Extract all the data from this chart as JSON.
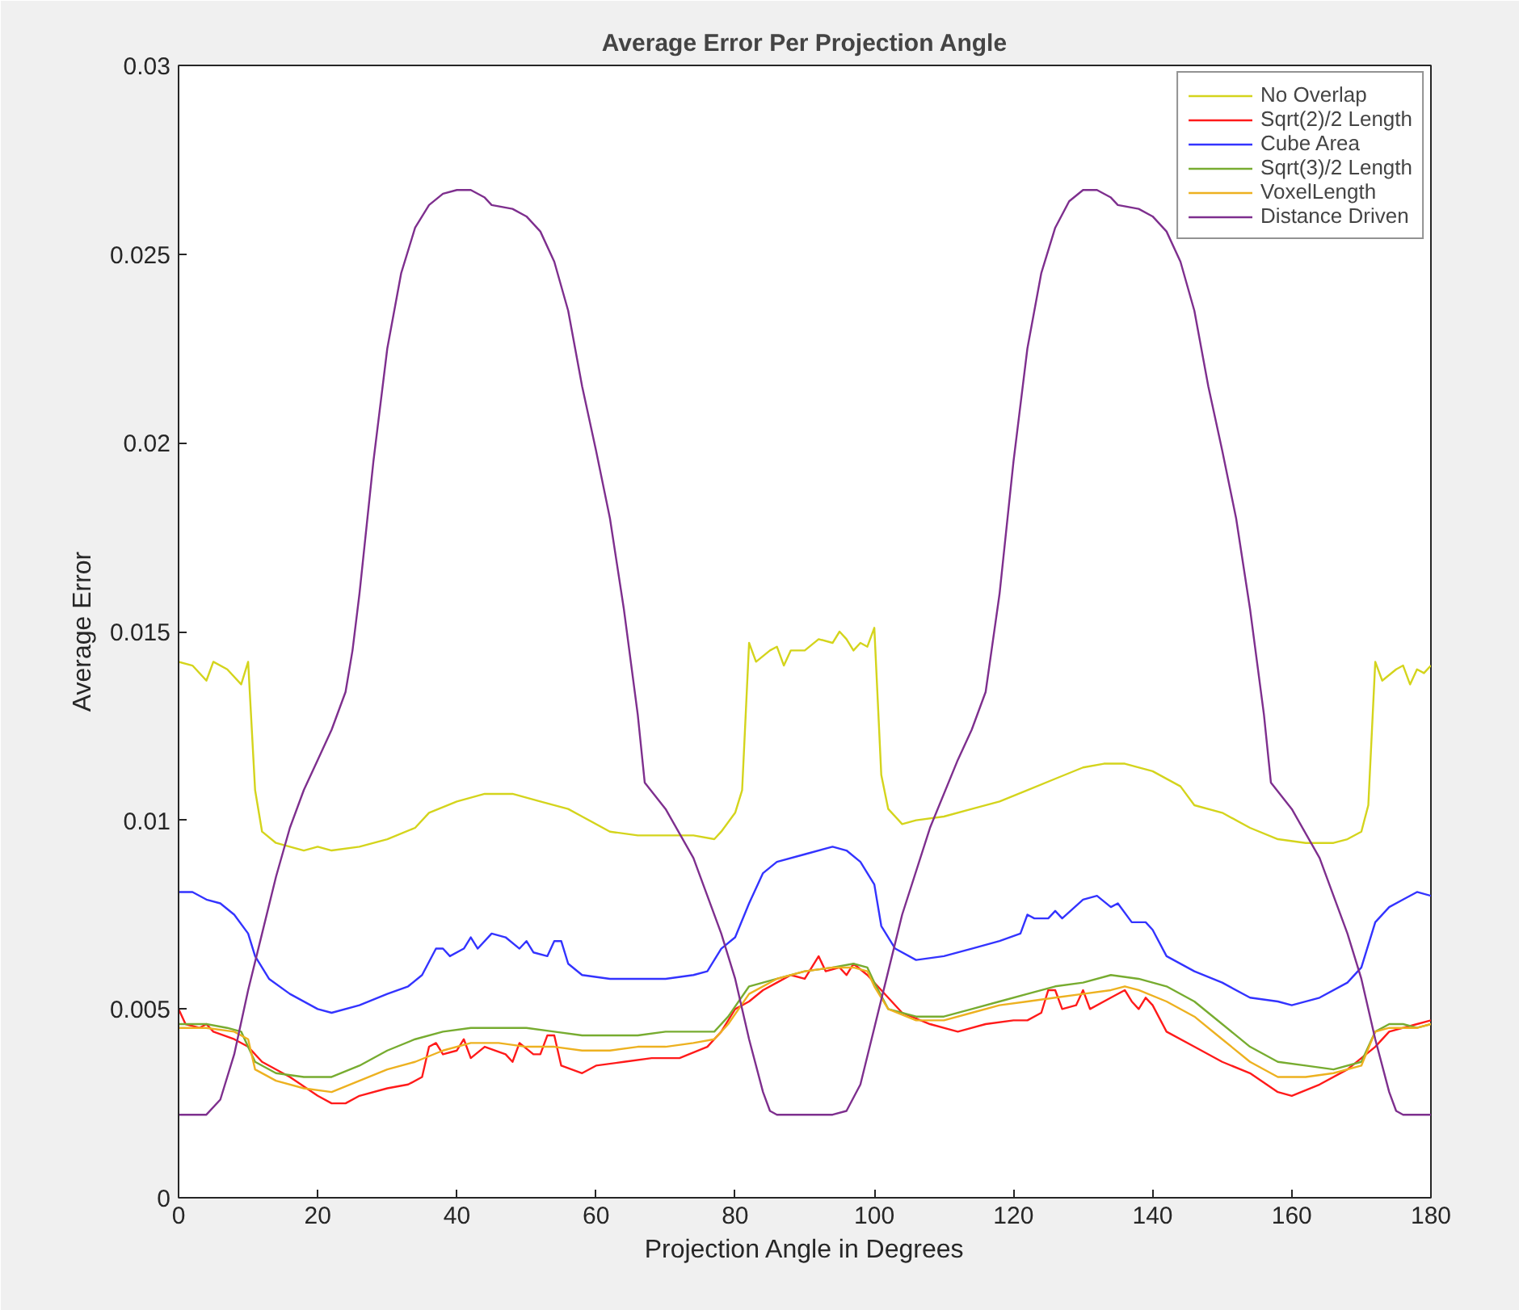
{
  "chart_data": {
    "type": "line",
    "title": "Average Error Per Projection Angle",
    "xlabel": "Projection Angle in Degrees",
    "ylabel": "Average Error",
    "xlim": [
      0,
      180
    ],
    "ylim": [
      0,
      0.03
    ],
    "xticks": [
      0,
      20,
      40,
      60,
      80,
      100,
      120,
      140,
      160,
      180
    ],
    "yticks": [
      0,
      0.005,
      0.01,
      0.015,
      0.02,
      0.025,
      0.03
    ],
    "grid": false,
    "legend": "top right",
    "marker": "none",
    "line_style": "solid",
    "series": [
      {
        "name": "No Overlap",
        "color": "#d4d41c",
        "x": [
          0,
          2,
          4,
          5,
          7,
          9,
          10,
          11,
          12,
          14,
          18,
          20,
          22,
          26,
          30,
          34,
          36,
          40,
          44,
          48,
          52,
          56,
          58,
          62,
          66,
          70,
          74,
          77,
          78,
          80,
          81,
          82,
          83,
          85,
          86,
          87,
          88,
          90,
          92,
          94,
          95,
          96,
          97,
          98,
          99,
          100,
          101,
          102,
          104,
          106,
          110,
          114,
          118,
          122,
          126,
          130,
          133,
          136,
          140,
          144,
          146,
          150,
          154,
          158,
          162,
          166,
          168,
          170,
          171,
          172,
          173,
          175,
          176,
          177,
          178,
          179,
          180
        ],
        "values": [
          0.0142,
          0.0141,
          0.0137,
          0.0142,
          0.014,
          0.0136,
          0.0142,
          0.0108,
          0.0097,
          0.0094,
          0.0092,
          0.0093,
          0.0092,
          0.0093,
          0.0095,
          0.0098,
          0.0102,
          0.0105,
          0.0107,
          0.0107,
          0.0105,
          0.0103,
          0.0101,
          0.0097,
          0.0096,
          0.0096,
          0.0096,
          0.0095,
          0.0097,
          0.0102,
          0.0108,
          0.0147,
          0.0142,
          0.0145,
          0.0146,
          0.0141,
          0.0145,
          0.0145,
          0.0148,
          0.0147,
          0.015,
          0.0148,
          0.0145,
          0.0147,
          0.0146,
          0.0151,
          0.0112,
          0.0103,
          0.0099,
          0.01,
          0.0101,
          0.0103,
          0.0105,
          0.0108,
          0.0111,
          0.0114,
          0.0115,
          0.0115,
          0.0113,
          0.0109,
          0.0104,
          0.0102,
          0.0098,
          0.0095,
          0.0094,
          0.0094,
          0.0095,
          0.0097,
          0.0104,
          0.0142,
          0.0137,
          0.014,
          0.0141,
          0.0136,
          0.014,
          0.0139,
          0.0141
        ]
      },
      {
        "name": "Sqrt(2)/2 Length",
        "color": "#ff1a1a",
        "x": [
          0,
          1,
          3,
          4,
          5,
          8,
          10,
          12,
          16,
          20,
          22,
          24,
          26,
          30,
          33,
          35,
          36,
          37,
          38,
          40,
          41,
          42,
          44,
          47,
          48,
          49,
          51,
          52,
          53,
          54,
          55,
          58,
          60,
          64,
          68,
          72,
          76,
          78,
          80,
          82,
          84,
          86,
          88,
          90,
          92,
          93,
          95,
          96,
          97,
          99,
          101,
          104,
          108,
          112,
          116,
          120,
          122,
          124,
          125,
          126,
          127,
          129,
          130,
          131,
          134,
          136,
          137,
          138,
          139,
          140,
          142,
          146,
          150,
          154,
          158,
          160,
          164,
          168,
          172,
          174,
          176,
          178,
          180
        ],
        "values": [
          0.005,
          0.0046,
          0.0045,
          0.0046,
          0.0044,
          0.0042,
          0.004,
          0.0036,
          0.0032,
          0.0027,
          0.0025,
          0.0025,
          0.0027,
          0.0029,
          0.003,
          0.0032,
          0.004,
          0.0041,
          0.0038,
          0.0039,
          0.0042,
          0.0037,
          0.004,
          0.0038,
          0.0036,
          0.0041,
          0.0038,
          0.0038,
          0.0043,
          0.0043,
          0.0035,
          0.0033,
          0.0035,
          0.0036,
          0.0037,
          0.0037,
          0.004,
          0.0044,
          0.005,
          0.0052,
          0.0055,
          0.0057,
          0.0059,
          0.0058,
          0.0064,
          0.006,
          0.0061,
          0.0059,
          0.0062,
          0.0059,
          0.0055,
          0.0049,
          0.0046,
          0.0044,
          0.0046,
          0.0047,
          0.0047,
          0.0049,
          0.0055,
          0.0055,
          0.005,
          0.0051,
          0.0055,
          0.005,
          0.0053,
          0.0055,
          0.0052,
          0.005,
          0.0053,
          0.0051,
          0.0044,
          0.004,
          0.0036,
          0.0033,
          0.0028,
          0.0027,
          0.003,
          0.0034,
          0.004,
          0.0044,
          0.0045,
          0.0046,
          0.0047
        ]
      },
      {
        "name": "Cube Area",
        "color": "#3333ff",
        "x": [
          0,
          2,
          4,
          6,
          8,
          10,
          11,
          13,
          16,
          20,
          22,
          26,
          30,
          33,
          35,
          37,
          38,
          39,
          41,
          42,
          43,
          45,
          47,
          49,
          50,
          51,
          53,
          54,
          55,
          56,
          58,
          62,
          66,
          70,
          74,
          76,
          78,
          80,
          82,
          84,
          86,
          90,
          94,
          96,
          98,
          100,
          101,
          103,
          106,
          110,
          114,
          118,
          121,
          122,
          123,
          125,
          126,
          127,
          130,
          132,
          134,
          135,
          137,
          139,
          140,
          142,
          146,
          150,
          154,
          158,
          160,
          164,
          168,
          170,
          172,
          174,
          176,
          178,
          180
        ],
        "values": [
          0.0081,
          0.0081,
          0.0079,
          0.0078,
          0.0075,
          0.007,
          0.0064,
          0.0058,
          0.0054,
          0.005,
          0.0049,
          0.0051,
          0.0054,
          0.0056,
          0.0059,
          0.0066,
          0.0066,
          0.0064,
          0.0066,
          0.0069,
          0.0066,
          0.007,
          0.0069,
          0.0066,
          0.0068,
          0.0065,
          0.0064,
          0.0068,
          0.0068,
          0.0062,
          0.0059,
          0.0058,
          0.0058,
          0.0058,
          0.0059,
          0.006,
          0.0066,
          0.0069,
          0.0078,
          0.0086,
          0.0089,
          0.0091,
          0.0093,
          0.0092,
          0.0089,
          0.0083,
          0.0072,
          0.0066,
          0.0063,
          0.0064,
          0.0066,
          0.0068,
          0.007,
          0.0075,
          0.0074,
          0.0074,
          0.0076,
          0.0074,
          0.0079,
          0.008,
          0.0077,
          0.0078,
          0.0073,
          0.0073,
          0.0071,
          0.0064,
          0.006,
          0.0057,
          0.0053,
          0.0052,
          0.0051,
          0.0053,
          0.0057,
          0.0061,
          0.0073,
          0.0077,
          0.0079,
          0.0081,
          0.008
        ]
      },
      {
        "name": "Sqrt(3)/2 Length",
        "color": "#77ac30",
        "x": [
          0,
          4,
          7,
          9,
          11,
          14,
          18,
          22,
          26,
          30,
          34,
          38,
          42,
          46,
          50,
          54,
          58,
          62,
          66,
          70,
          74,
          77,
          79,
          82,
          86,
          90,
          94,
          97,
          99,
          100,
          102,
          106,
          110,
          114,
          118,
          122,
          126,
          130,
          134,
          138,
          142,
          146,
          150,
          154,
          158,
          162,
          166,
          170,
          172,
          174,
          176,
          178,
          180
        ],
        "values": [
          0.0046,
          0.0046,
          0.0045,
          0.0044,
          0.0036,
          0.0033,
          0.0032,
          0.0032,
          0.0035,
          0.0039,
          0.0042,
          0.0044,
          0.0045,
          0.0045,
          0.0045,
          0.0044,
          0.0043,
          0.0043,
          0.0043,
          0.0044,
          0.0044,
          0.0044,
          0.0048,
          0.0056,
          0.0058,
          0.006,
          0.0061,
          0.0062,
          0.0061,
          0.0057,
          0.005,
          0.0048,
          0.0048,
          0.005,
          0.0052,
          0.0054,
          0.0056,
          0.0057,
          0.0059,
          0.0058,
          0.0056,
          0.0052,
          0.0046,
          0.004,
          0.0036,
          0.0035,
          0.0034,
          0.0036,
          0.0044,
          0.0046,
          0.0046,
          0.0045,
          0.0046
        ]
      },
      {
        "name": "VoxelLength",
        "color": "#edb120",
        "x": [
          0,
          4,
          8,
          10,
          11,
          14,
          18,
          22,
          26,
          30,
          34,
          38,
          42,
          46,
          50,
          54,
          58,
          62,
          66,
          70,
          74,
          77,
          79,
          82,
          86,
          90,
          94,
          97,
          99,
          100,
          102,
          106,
          110,
          114,
          118,
          122,
          126,
          130,
          134,
          136,
          138,
          142,
          146,
          150,
          154,
          158,
          162,
          166,
          170,
          172,
          174,
          178,
          180
        ],
        "values": [
          0.0045,
          0.0045,
          0.0044,
          0.0042,
          0.0034,
          0.0031,
          0.0029,
          0.0028,
          0.0031,
          0.0034,
          0.0036,
          0.0039,
          0.0041,
          0.0041,
          0.004,
          0.004,
          0.0039,
          0.0039,
          0.004,
          0.004,
          0.0041,
          0.0042,
          0.0046,
          0.0054,
          0.0058,
          0.006,
          0.0061,
          0.0061,
          0.006,
          0.0056,
          0.005,
          0.0047,
          0.0047,
          0.0049,
          0.0051,
          0.0052,
          0.0053,
          0.0054,
          0.0055,
          0.0056,
          0.0055,
          0.0052,
          0.0048,
          0.0042,
          0.0036,
          0.0032,
          0.0032,
          0.0033,
          0.0035,
          0.0044,
          0.0045,
          0.0045,
          0.0046
        ]
      },
      {
        "name": "Distance Driven",
        "color": "#7e2f8e",
        "x": [
          0,
          4,
          6,
          8,
          10,
          12,
          14,
          16,
          18,
          20,
          22,
          24,
          25,
          26,
          28,
          30,
          32,
          34,
          36,
          38,
          40,
          42,
          44,
          45,
          48,
          50,
          52,
          54,
          56,
          58,
          60,
          62,
          64,
          66,
          67,
          70,
          74,
          78,
          80,
          82,
          84,
          85,
          86,
          90,
          94,
          96,
          98,
          100,
          102,
          104,
          108,
          112,
          114,
          116,
          118,
          120,
          122,
          124,
          126,
          128,
          130,
          132,
          134,
          135,
          138,
          140,
          142,
          144,
          146,
          148,
          150,
          152,
          154,
          156,
          157,
          160,
          164,
          168,
          170,
          172,
          174,
          175,
          176,
          180
        ],
        "values": [
          0.0022,
          0.0022,
          0.0026,
          0.0038,
          0.0055,
          0.007,
          0.0085,
          0.0098,
          0.0108,
          0.0116,
          0.0124,
          0.0134,
          0.0145,
          0.016,
          0.0195,
          0.0225,
          0.0245,
          0.0257,
          0.0263,
          0.0266,
          0.0267,
          0.0267,
          0.0265,
          0.0263,
          0.0262,
          0.026,
          0.0256,
          0.0248,
          0.0235,
          0.0215,
          0.0198,
          0.018,
          0.0156,
          0.0128,
          0.011,
          0.0103,
          0.009,
          0.007,
          0.0058,
          0.0042,
          0.0028,
          0.0023,
          0.0022,
          0.0022,
          0.0022,
          0.0023,
          0.003,
          0.0045,
          0.006,
          0.0075,
          0.0098,
          0.0116,
          0.0124,
          0.0134,
          0.016,
          0.0195,
          0.0225,
          0.0245,
          0.0257,
          0.0264,
          0.0267,
          0.0267,
          0.0265,
          0.0263,
          0.0262,
          0.026,
          0.0256,
          0.0248,
          0.0235,
          0.0215,
          0.0198,
          0.018,
          0.0156,
          0.0128,
          0.011,
          0.0103,
          0.009,
          0.007,
          0.0058,
          0.0042,
          0.0028,
          0.0023,
          0.0022,
          0.0022
        ]
      }
    ]
  }
}
